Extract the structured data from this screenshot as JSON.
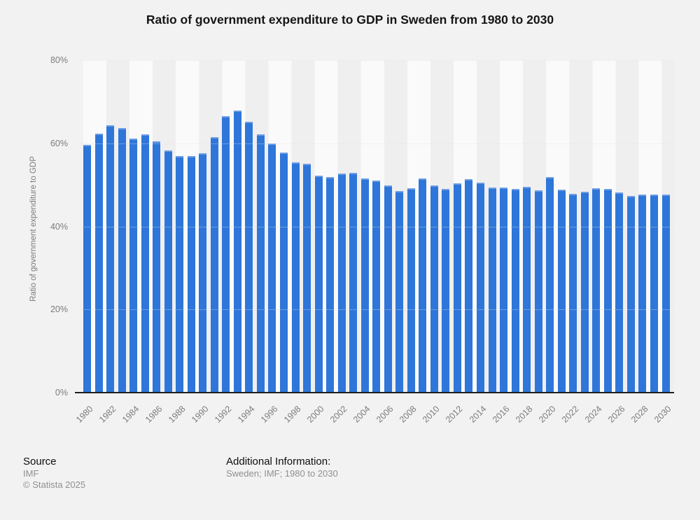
{
  "title": "Ratio of government expenditure to GDP in Sweden from 1980 to 2030",
  "chart_data": {
    "type": "bar",
    "title": "Ratio of government expenditure to GDP in Sweden from 1980 to 2030",
    "xlabel": "",
    "ylabel": "Ratio of government expenditure to GDP",
    "ylim": [
      0,
      80
    ],
    "yticks": [
      "0%",
      "20%",
      "40%",
      "60%",
      "80%"
    ],
    "x_tick_interval": 2,
    "grid": true,
    "legend": false,
    "bar_color": "#2e76d9",
    "bar_cap_color": "#6d9ce4",
    "unit": "%",
    "categories": [
      1980,
      1981,
      1982,
      1983,
      1984,
      1985,
      1986,
      1987,
      1988,
      1989,
      1990,
      1991,
      1992,
      1993,
      1994,
      1995,
      1996,
      1997,
      1998,
      1999,
      2000,
      2001,
      2002,
      2003,
      2004,
      2005,
      2006,
      2007,
      2008,
      2009,
      2010,
      2011,
      2012,
      2013,
      2014,
      2015,
      2016,
      2017,
      2018,
      2019,
      2020,
      2021,
      2022,
      2023,
      2024,
      2025,
      2026,
      2027,
      2028,
      2029,
      2030
    ],
    "values": [
      59.6,
      62.3,
      64.3,
      63.7,
      61.2,
      62.2,
      60.5,
      58.3,
      56.9,
      56.9,
      57.6,
      61.5,
      66.6,
      67.9,
      65.2,
      62.1,
      60.0,
      57.8,
      55.5,
      55.1,
      52.2,
      51.8,
      52.7,
      52.9,
      51.6,
      51.1,
      49.9,
      48.5,
      49.2,
      51.6,
      49.8,
      49.1,
      50.3,
      51.3,
      50.6,
      49.3,
      49.4,
      49.1,
      49.6,
      48.7,
      51.9,
      48.9,
      47.8,
      48.3,
      49.2,
      49.1,
      48.2,
      47.3,
      47.6,
      47.6,
      47.6
    ]
  },
  "footer": {
    "source_label": "Source",
    "source_value": "IMF",
    "copyright": "© Statista 2025",
    "additional_label": "Additional Information:",
    "additional_value": "Sweden; IMF; 1980 to 2030"
  }
}
